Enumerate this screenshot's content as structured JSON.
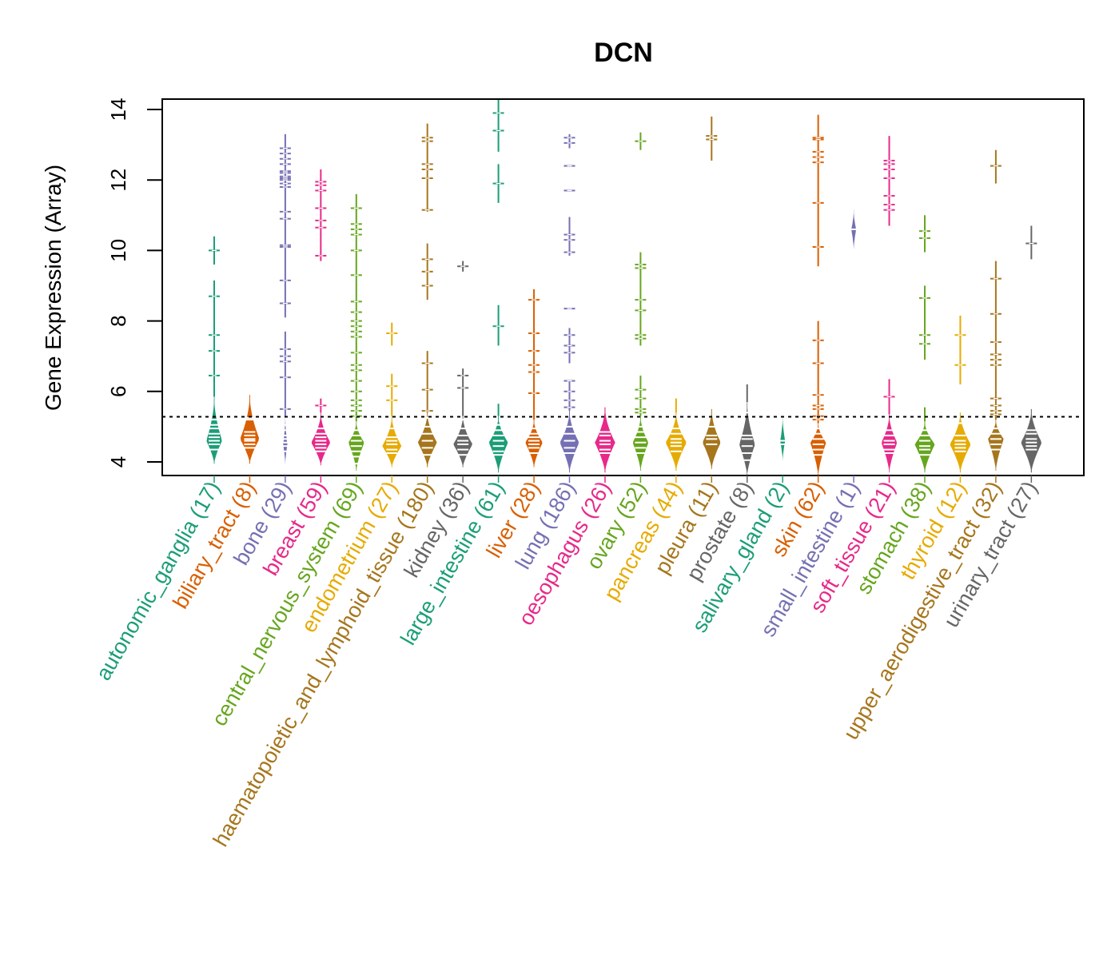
{
  "chart_data": {
    "type": "beanplot",
    "title": "DCN",
    "xlabel": "",
    "ylabel": "Gene Expression (Array)",
    "ylim": [
      3.6,
      14.3
    ],
    "yticks": [
      4,
      6,
      8,
      10,
      12,
      14
    ],
    "reference_line": {
      "value": 5.28,
      "style": "dotted"
    },
    "grid": false,
    "categories": [
      {
        "name": "autonomic_ganglia",
        "n": 17,
        "label": "autonomic_ganglia (17)",
        "color": "#1B9E77",
        "body": {
          "min": 3.95,
          "max": 5.85,
          "peak": 4.6,
          "width": 0.45
        },
        "tails": [
          [
            5.85,
            9.15
          ],
          [
            9.6,
            10.4
          ]
        ],
        "points": [
          4.35,
          4.5,
          4.6,
          4.7,
          4.8,
          4.95,
          5.05,
          5.2,
          6.45,
          7.15,
          7.6,
          8.7,
          10.0
        ]
      },
      {
        "name": "biliary_tract",
        "n": 8,
        "label": "biliary_tract (8)",
        "color": "#D95F02",
        "body": {
          "min": 3.95,
          "max": 5.9,
          "peak": 4.65,
          "width": 0.55
        },
        "tails": [],
        "points": [
          4.4,
          4.5,
          4.6,
          4.75,
          4.85,
          5.2,
          5.25,
          4.65
        ]
      },
      {
        "name": "bone",
        "n": 29,
        "label": "bone (29)",
        "color": "#7570B3",
        "body": {
          "min": 3.95,
          "max": 5.3,
          "peak": 4.5,
          "width": 0.12
        },
        "tails": [
          [
            5.3,
            7.7
          ],
          [
            8.1,
            13.3
          ]
        ],
        "points": [
          4.3,
          4.45,
          4.55,
          4.65,
          4.75,
          4.9,
          5.05,
          5.5,
          6.4,
          6.85,
          7.0,
          7.2,
          8.5,
          9.15,
          10.1,
          10.15,
          10.9,
          11.1,
          11.8,
          11.9,
          12.0,
          12.1,
          12.25,
          12.45,
          12.6,
          12.75,
          12.9,
          12.05,
          12.2
        ]
      },
      {
        "name": "breast",
        "n": 59,
        "label": "breast (59)",
        "color": "#E7298A",
        "body": {
          "min": 3.9,
          "max": 5.4,
          "peak": 4.55,
          "width": 0.55
        },
        "tails": [
          [
            5.4,
            5.8
          ],
          [
            9.7,
            12.3
          ]
        ],
        "points": [
          4.3,
          4.4,
          4.5,
          4.6,
          4.7,
          4.8,
          4.95,
          5.6,
          9.85,
          10.65,
          10.85,
          11.2,
          11.7,
          11.85,
          11.95
        ]
      },
      {
        "name": "central_nervous_system",
        "n": 69,
        "label": "central_nervous_system (69)",
        "color": "#66A61E",
        "body": {
          "min": 3.75,
          "max": 5.15,
          "peak": 4.55,
          "width": 0.45
        },
        "tails": [
          [
            5.15,
            11.6
          ]
        ],
        "points": [
          3.95,
          4.15,
          4.3,
          4.45,
          4.6,
          4.75,
          4.9,
          5.3,
          5.45,
          5.6,
          5.75,
          6.0,
          6.3,
          6.6,
          6.75,
          7.1,
          7.55,
          7.7,
          7.85,
          8.0,
          8.25,
          8.55,
          9.3,
          10.0,
          10.45,
          10.6,
          10.75,
          11.2
        ]
      },
      {
        "name": "endometrium",
        "n": 27,
        "label": "endometrium (27)",
        "color": "#E6AB02",
        "body": {
          "min": 3.85,
          "max": 5.3,
          "peak": 4.45,
          "width": 0.55
        },
        "tails": [
          [
            5.3,
            6.5
          ],
          [
            7.3,
            7.95
          ]
        ],
        "points": [
          4.25,
          4.35,
          4.5,
          4.6,
          4.7,
          4.95,
          5.75,
          6.15,
          7.65
        ]
      },
      {
        "name": "haematopoietic_and_lymphoid_tissue",
        "n": 180,
        "label": "haematopoietic_and_lymphoid_tissue (180)",
        "color": "#A6761D",
        "body": {
          "min": 3.85,
          "max": 5.4,
          "peak": 4.55,
          "width": 0.55
        },
        "tails": [
          [
            5.4,
            7.15
          ],
          [
            8.6,
            10.2
          ],
          [
            11.1,
            13.6
          ]
        ],
        "points": [
          4.2,
          4.4,
          4.6,
          4.8,
          5.0,
          5.45,
          5.25,
          6.05,
          6.8,
          9.0,
          9.4,
          9.75,
          11.15,
          12.05,
          12.3,
          12.45,
          13.1,
          13.2
        ]
      },
      {
        "name": "kidney",
        "n": 36,
        "label": "kidney (36)",
        "color": "#666666",
        "body": {
          "min": 3.85,
          "max": 5.3,
          "peak": 4.5,
          "width": 0.55
        },
        "tails": [
          [
            5.3,
            6.65
          ],
          [
            9.4,
            9.7
          ]
        ],
        "points": [
          4.2,
          4.35,
          4.5,
          4.6,
          4.75,
          4.95,
          5.2,
          6.1,
          6.45,
          9.55
        ]
      },
      {
        "name": "large_intestine",
        "n": 61,
        "label": "large_intestine (61)",
        "color": "#1B9E77",
        "body": {
          "min": 3.7,
          "max": 5.3,
          "peak": 4.55,
          "width": 0.55
        },
        "tails": [
          [
            5.3,
            5.65
          ],
          [
            7.3,
            8.45
          ],
          [
            11.35,
            12.45
          ],
          [
            12.8,
            14.3
          ]
        ],
        "points": [
          4.2,
          4.3,
          4.45,
          4.6,
          4.75,
          4.9,
          5.05,
          7.85,
          11.9,
          13.4,
          13.9
        ]
      },
      {
        "name": "liver",
        "n": 28,
        "label": "liver (28)",
        "color": "#D95F02",
        "body": {
          "min": 3.85,
          "max": 5.2,
          "peak": 4.55,
          "width": 0.5
        },
        "tails": [
          [
            5.2,
            8.9
          ]
        ],
        "points": [
          4.25,
          4.4,
          4.5,
          4.6,
          4.7,
          4.8,
          4.95,
          5.95,
          6.55,
          6.75,
          7.15,
          7.65,
          8.6
        ]
      },
      {
        "name": "lung",
        "n": 186,
        "label": "lung (186)",
        "color": "#7570B3",
        "body": {
          "min": 3.7,
          "max": 5.45,
          "peak": 4.55,
          "width": 0.55
        },
        "tails": [
          [
            5.45,
            6.3
          ],
          [
            6.8,
            7.8
          ],
          [
            9.85,
            10.95
          ],
          [
            12.9,
            13.3
          ]
        ],
        "points": [
          4.25,
          4.4,
          4.6,
          4.8,
          5.0,
          5.55,
          5.75,
          6.0,
          6.3,
          7.1,
          7.3,
          7.6,
          8.35,
          9.95,
          10.3,
          10.45,
          11.7,
          12.4,
          13.05,
          13.2
        ]
      },
      {
        "name": "oesophagus",
        "n": 26,
        "label": "oesophagus (26)",
        "color": "#E7298A",
        "body": {
          "min": 3.7,
          "max": 5.55,
          "peak": 4.55,
          "width": 0.58
        },
        "tails": [],
        "points": [
          4.25,
          4.35,
          4.5,
          4.6,
          4.75,
          4.85
        ]
      },
      {
        "name": "ovary",
        "n": 52,
        "label": "ovary (52)",
        "color": "#66A61E",
        "body": {
          "min": 3.75,
          "max": 5.3,
          "peak": 4.55,
          "width": 0.45
        },
        "tails": [
          [
            5.3,
            6.45
          ],
          [
            7.3,
            9.95
          ],
          [
            12.85,
            13.35
          ]
        ],
        "points": [
          4.25,
          4.4,
          4.55,
          4.7,
          4.85,
          5.0,
          5.4,
          5.5,
          5.8,
          6.05,
          7.5,
          7.6,
          8.3,
          8.6,
          9.5,
          9.6,
          13.1
        ]
      },
      {
        "name": "pancreas",
        "n": 44,
        "label": "pancreas (44)",
        "color": "#E6AB02",
        "body": {
          "min": 3.75,
          "max": 5.4,
          "peak": 4.55,
          "width": 0.6
        },
        "tails": [
          [
            5.4,
            5.8
          ]
        ],
        "points": [
          4.3,
          4.45,
          4.55,
          4.65,
          4.8,
          4.95,
          5.3
        ]
      },
      {
        "name": "pleura",
        "n": 11,
        "label": "pleura (11)",
        "color": "#A6761D",
        "body": {
          "min": 3.8,
          "max": 5.5,
          "peak": 4.55,
          "width": 0.52
        },
        "tails": [
          [
            12.55,
            13.8
          ]
        ],
        "points": [
          4.5,
          4.65,
          4.75,
          5.0,
          13.15,
          13.25
        ]
      },
      {
        "name": "prostate",
        "n": 8,
        "label": "prostate (8)",
        "color": "#666666",
        "body": {
          "min": 3.6,
          "max": 5.7,
          "peak": 4.5,
          "width": 0.45
        },
        "tails": [
          [
            5.7,
            6.2
          ]
        ],
        "points": [
          4.05,
          4.25,
          4.45,
          4.65,
          4.75,
          5.4
        ]
      },
      {
        "name": "salivary_gland",
        "n": 2,
        "label": "salivary_gland (2)",
        "color": "#1B9E77",
        "body": {
          "min": 4.05,
          "max": 5.3,
          "peak": 4.6,
          "width": 0.14
        },
        "tails": [],
        "points": [
          4.5,
          4.6
        ]
      },
      {
        "name": "skin",
        "n": 62,
        "label": "skin (62)",
        "color": "#D95F02",
        "body": {
          "min": 3.6,
          "max": 5.1,
          "peak": 4.55,
          "width": 0.45
        },
        "tails": [
          [
            5.1,
            8.0
          ],
          [
            9.55,
            13.85
          ]
        ],
        "points": [
          4.2,
          4.35,
          4.5,
          4.65,
          4.8,
          4.95,
          5.2,
          5.3,
          5.5,
          5.6,
          5.9,
          6.8,
          7.45,
          10.1,
          11.35,
          12.5,
          12.65,
          12.8,
          13.15,
          13.2
        ]
      },
      {
        "name": "small_intestine",
        "n": 1,
        "label": "small_intestine (1)",
        "color": "#7570B3",
        "body": {
          "min": 10.05,
          "max": 11.15,
          "peak": 10.6,
          "width": 0.14
        },
        "tails": [],
        "points": [
          10.6
        ]
      },
      {
        "name": "soft_tissue",
        "n": 21,
        "label": "soft_tissue (21)",
        "color": "#E7298A",
        "body": {
          "min": 3.7,
          "max": 5.35,
          "peak": 4.55,
          "width": 0.45
        },
        "tails": [
          [
            5.35,
            6.35
          ],
          [
            10.7,
            13.25
          ]
        ],
        "points": [
          4.25,
          4.35,
          4.5,
          4.6,
          4.75,
          4.9,
          5.85,
          11.15,
          11.3,
          11.55,
          12.05,
          12.3,
          12.45,
          12.55
        ]
      },
      {
        "name": "stomach",
        "n": 38,
        "label": "stomach (38)",
        "color": "#66A61E",
        "body": {
          "min": 3.7,
          "max": 5.15,
          "peak": 4.5,
          "width": 0.58
        },
        "tails": [
          [
            5.15,
            5.55
          ],
          [
            6.9,
            9.0
          ],
          [
            9.95,
            11.0
          ]
        ],
        "points": [
          4.2,
          4.35,
          4.45,
          4.6,
          4.75,
          4.9,
          7.35,
          7.6,
          8.65,
          10.35,
          10.55
        ]
      },
      {
        "name": "thyroid",
        "n": 12,
        "label": "thyroid (12)",
        "color": "#E6AB02",
        "body": {
          "min": 3.7,
          "max": 5.4,
          "peak": 4.5,
          "width": 0.6
        },
        "tails": [
          [
            6.2,
            8.15
          ]
        ],
        "points": [
          4.3,
          4.4,
          4.5,
          4.6,
          4.75,
          5.1,
          6.75,
          7.6
        ]
      },
      {
        "name": "upper_aerodigestive_tract",
        "n": 32,
        "label": "upper_aerodigestive_tract (32)",
        "color": "#A6761D",
        "body": {
          "min": 3.75,
          "max": 5.2,
          "peak": 4.65,
          "width": 0.45
        },
        "tails": [
          [
            5.2,
            9.7
          ],
          [
            11.9,
            12.85
          ]
        ],
        "points": [
          4.35,
          4.5,
          4.65,
          4.8,
          4.95,
          5.35,
          5.45,
          5.6,
          5.8,
          6.75,
          6.9,
          7.05,
          7.4,
          8.2,
          9.2,
          12.4
        ]
      },
      {
        "name": "urinary_tract",
        "n": 27,
        "label": "urinary_tract (27)",
        "color": "#666666",
        "body": {
          "min": 3.7,
          "max": 5.5,
          "peak": 4.55,
          "width": 0.6
        },
        "tails": [
          [
            9.75,
            10.7
          ]
        ],
        "points": [
          4.35,
          4.45,
          4.55,
          4.65,
          4.8,
          4.9,
          10.2
        ]
      }
    ]
  }
}
